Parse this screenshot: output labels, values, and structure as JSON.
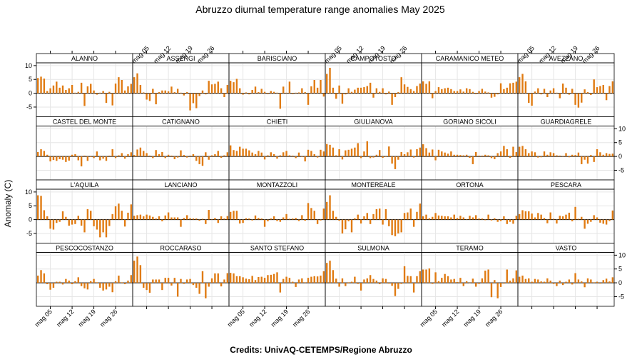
{
  "title": "Abruzzo diurnal temperature range anomalies May 2025",
  "credits": "Credits: UnivAQ-CETEMPS/Regione Abruzzo",
  "ylabel": "Anomaly (C)",
  "colors": {
    "bar": "#e07b12",
    "zero_line": "#000000",
    "grid": "#e6e6e6",
    "strip": "#ffffff",
    "frame": "#000000"
  },
  "chart_data": {
    "type": "bar",
    "layout": "trellis 6 columns x 4 rows",
    "grid": true,
    "ylim": [
      -8.5,
      11
    ],
    "yticks": [
      -5,
      0,
      5,
      10
    ],
    "xlim": [
      0.5,
      31.5
    ],
    "xticks": [
      {
        "day": 5,
        "label": "mag 05"
      },
      {
        "day": 12,
        "label": "mag 12"
      },
      {
        "day": 19,
        "label": "mag 19"
      },
      {
        "day": 26,
        "label": "mag 26"
      }
    ],
    "x": [
      1,
      2,
      3,
      4,
      5,
      6,
      7,
      8,
      9,
      10,
      11,
      12,
      13,
      14,
      15,
      16,
      17,
      18,
      19,
      20,
      21,
      22,
      23,
      24,
      25,
      26,
      27,
      28,
      29,
      30,
      31
    ],
    "stations": [
      {
        "name": "ALANNO",
        "values": [
          5.5,
          6,
          5.3,
          0.8,
          1.8,
          2.8,
          4.2,
          2,
          2.8,
          1.2,
          1.8,
          3,
          0.2,
          0.5,
          3.8,
          -4.6,
          2.5,
          3.4,
          1,
          -0.5,
          0.2,
          0.8,
          -3.5,
          0.5,
          -4.4,
          3.5,
          5.8,
          4.8,
          1,
          2.5,
          3.4
        ]
      },
      {
        "name": "ASSERGI",
        "values": [
          5.8,
          7.2,
          3,
          0.3,
          -2.3,
          -2.8,
          1.6,
          -4,
          0.4,
          1,
          1,
          0.7,
          2.4,
          0.4,
          1.6,
          0.2,
          -0.8,
          0.4,
          -6.2,
          -3.6,
          -5.4,
          -1,
          1,
          -0.4,
          4.5,
          3.2,
          3.4,
          4.2,
          1.8,
          -1.4,
          3
        ]
      },
      {
        "name": "BARISCIANO",
        "values": [
          4.5,
          4,
          5.2,
          1.8,
          -0.5,
          0.3,
          -0.4,
          1.2,
          2.4,
          0.4,
          1.6,
          0.5,
          -0.3,
          0.8,
          0.5,
          0.2,
          -5.6,
          2.4,
          0.2,
          4.2,
          -0.3,
          0.2,
          0.3,
          1.8,
          0.4,
          -4.2,
          2.5,
          4.8,
          2,
          4.8,
          -1.2
        ]
      },
      {
        "name": "CAMPOTOSTO",
        "values": [
          7,
          9.2,
          2,
          -2,
          2.8,
          -3.8,
          -0.4,
          1.8,
          0.5,
          1.3,
          2,
          2,
          2.2,
          2.6,
          3.8,
          -1.6,
          1.8,
          0.5,
          1.8,
          -0.4,
          0.6,
          -4.2,
          -1.4,
          0.4,
          5.8,
          3.2,
          2.3,
          1.5,
          0.8,
          2.6,
          3.5
        ]
      },
      {
        "name": "CARAMANICO METEO",
        "values": [
          4.3,
          3.4,
          4.3,
          -1.8,
          0.8,
          2.2,
          1.5,
          1.8,
          2,
          1.5,
          0.8,
          0.8,
          1.4,
          0.6,
          1.8,
          1.5,
          0.5,
          -0.3,
          0.8,
          1.6,
          0.6,
          0.3,
          -1.6,
          -1.3,
          -0.4,
          3.6,
          1.5,
          2,
          3.6,
          3.8,
          4.2
        ]
      },
      {
        "name": "AVEZZANO",
        "values": [
          5.8,
          7,
          4.3,
          -3.5,
          -4.5,
          0.6,
          1.8,
          -0.4,
          1.6,
          -1.4,
          1,
          1.8,
          0.2,
          -1.8,
          3.5,
          2,
          -0.5,
          1.6,
          -4.2,
          -5.2,
          -3.4,
          1.4,
          0.4,
          -0.6,
          5,
          2.2,
          2.6,
          3,
          -2.5,
          2.6,
          4.3
        ]
      },
      {
        "name": "CASTEL DEL MONTE",
        "values": [
          1.6,
          2.6,
          2,
          0.6,
          -1.8,
          -1.3,
          -1.6,
          -1,
          -1.2,
          -2,
          -1.5,
          0.6,
          0.8,
          -1.4,
          -3.6,
          0.3,
          -1.6,
          -0.2,
          -0.6,
          1.8,
          -1.4,
          -0.8,
          -1.6,
          0.3,
          2.6,
          -0.6,
          0.4,
          1.2,
          -0.8,
          0.8,
          1.5
        ]
      },
      {
        "name": "CATIGNANO",
        "values": [
          0.5,
          2.5,
          3.2,
          2,
          1.2,
          0.3,
          -0.6,
          2.3,
          0.8,
          1.6,
          -0.6,
          0.6,
          0.3,
          -1,
          -0.4,
          2.2,
          0.5,
          -0.4,
          0.3,
          0.8,
          -1.6,
          -2.8,
          -3.4,
          1.5,
          -1.2,
          0.4,
          0.8,
          2,
          -0.5,
          0.4,
          1.5
        ]
      },
      {
        "name": "CHIETI",
        "values": [
          4,
          2.3,
          2,
          3.5,
          2.8,
          2.8,
          2.2,
          1.4,
          0.8,
          2,
          1.4,
          -1.1,
          0.4,
          1.5,
          0.8,
          -0.8,
          0.4,
          1.5,
          2,
          0.4,
          0.3,
          -0.6,
          1.4,
          -0.2,
          -1.8,
          2.4,
          2,
          0.8,
          -0.4,
          2.4,
          1.8
        ]
      },
      {
        "name": "GIULIANOVA",
        "values": [
          4.5,
          4.2,
          3.2,
          0.4,
          2.6,
          -1.1,
          2.2,
          2.4,
          2.8,
          3.2,
          4.8,
          -0.6,
          1.8,
          5.5,
          -0.6,
          -0.4,
          0.6,
          2.3,
          -0.5,
          -0.2,
          3.6,
          -2.6,
          -4.6,
          -1.2,
          1.6,
          0.8,
          1.5,
          2.5,
          -0.4,
          2.6,
          3.2
        ]
      },
      {
        "name": "GORIANO SICOLI",
        "values": [
          4.4,
          3,
          1.4,
          2.5,
          -1.4,
          2.4,
          1.8,
          1.4,
          1,
          1.8,
          0.6,
          0.6,
          0.5,
          0.4,
          0.6,
          -0.5,
          -2.8,
          1.6,
          0.3,
          0.3,
          0.6,
          0.4,
          -0.6,
          -1,
          1.2,
          1.8,
          3.8,
          2.6,
          -0.5,
          3.5,
          1.6
        ]
      },
      {
        "name": "GUARDIAGRELE",
        "values": [
          3.5,
          3.8,
          2.6,
          1.2,
          1.8,
          1.5,
          -0.4,
          -0.3,
          1.8,
          0.6,
          1.5,
          1.2,
          0.4,
          0.3,
          0.2,
          1.2,
          -0.3,
          0.6,
          0.5,
          1.4,
          -2.8,
          -1.2,
          -2.6,
          0.5,
          -2,
          2.6,
          1.5,
          0.6,
          1.2,
          0.9,
          1
        ]
      },
      {
        "name": "L'AQUILA",
        "values": [
          8.8,
          8.6,
          3.4,
          1.2,
          -3.3,
          -3.6,
          -1.2,
          -0.8,
          3,
          1,
          -2.2,
          -1.8,
          -1.6,
          1.4,
          -2.2,
          -4.6,
          3.8,
          3.2,
          -2.4,
          -3.6,
          -6.4,
          -4.6,
          -6.4,
          -2.3,
          2,
          4.8,
          5.8,
          3.2,
          -2.5,
          2.5,
          5.5
        ]
      },
      {
        "name": "LANCIANO",
        "values": [
          1.4,
          1.6,
          1.8,
          1.2,
          1.8,
          1.5,
          1,
          0.4,
          1.2,
          -0.6,
          1.5,
          2.6,
          0.8,
          0.8,
          0.8,
          -2.6,
          0.6,
          1.6,
          0.5,
          0.4,
          0.4,
          -0.4,
          0.3,
          -1.6,
          3.5,
          0.2,
          0.6,
          -1.2,
          1.2,
          0.4,
          1.3
        ]
      },
      {
        "name": "MONTAZZOLI",
        "values": [
          2.8,
          3.2,
          3.2,
          -1.4,
          -1.2,
          0.5,
          0.4,
          -0.3,
          1.5,
          0.6,
          0.4,
          -2.6,
          -0.6,
          0.4,
          1.2,
          -0.5,
          -0.8,
          0.8,
          2,
          0.3,
          0.4,
          0.6,
          -0.5,
          1.6,
          -0.4,
          6,
          4.2,
          3.2,
          -1.6,
          -0.3,
          4
        ]
      },
      {
        "name": "MONTEREALE",
        "values": [
          6.4,
          8.8,
          3.2,
          1,
          -0.4,
          -5,
          -3.5,
          -0.6,
          -4.6,
          0.5,
          1.8,
          -1.4,
          1.2,
          2.4,
          -1.6,
          2,
          3.8,
          4,
          -1.8,
          3.8,
          -2.4,
          -5.6,
          -6,
          -5,
          -4.6,
          2.4,
          2.6,
          4,
          -2.6,
          2.8,
          5.8
        ]
      },
      {
        "name": "ORTONA",
        "values": [
          1.2,
          1.8,
          0.5,
          1,
          2.4,
          1.5,
          1.4,
          1.2,
          1.2,
          0.8,
          1.8,
          0.6,
          1.4,
          0.8,
          0.2,
          1.4,
          0.8,
          1.6,
          0.4,
          0.4,
          -0.2,
          1.8,
          -0.3,
          0.5,
          -0.8,
          -0.5,
          1.2,
          -1.6,
          -0.8,
          -1.5,
          1.4
        ]
      },
      {
        "name": "PESCARA",
        "values": [
          2,
          3.4,
          3,
          3,
          2.2,
          0.8,
          2.4,
          1.8,
          0.6,
          -1.3,
          2.6,
          0.3,
          -1.4,
          1.4,
          1.2,
          1.8,
          2.5,
          -0.6,
          4.6,
          0.3,
          1,
          -3.3,
          -1.5,
          -0.8,
          1.6,
          0.8,
          -1.1,
          -1.5,
          -1.8,
          -0.5,
          3.3
        ]
      },
      {
        "name": "PESCOCOSTANZO",
        "values": [
          2.6,
          4.6,
          3.4,
          -0.5,
          -2.5,
          -1.8,
          0.4,
          0.4,
          -0.6,
          1.4,
          0.8,
          -0.5,
          0.6,
          2,
          -1.2,
          -2,
          -2.4,
          0.6,
          1.4,
          0.2,
          -1.8,
          -2.8,
          -2.4,
          -1.4,
          -3.4,
          0.6,
          2.6,
          0.2,
          -0.5,
          0.8,
          2.8
        ]
      },
      {
        "name": "ROCCARASO",
        "values": [
          8,
          9.5,
          6.4,
          -1.8,
          -2.6,
          -3.6,
          1.2,
          1.2,
          1.2,
          -2.6,
          1.8,
          1.8,
          -1,
          1.8,
          -5,
          1.4,
          -0.4,
          1.2,
          1.4,
          -0.8,
          -1.8,
          -4,
          4.2,
          -5.6,
          -1.4,
          1.6,
          3.4,
          3.4,
          -1.3,
          1.2,
          3.5
        ]
      },
      {
        "name": "SANTO STEFANO",
        "values": [
          3.6,
          3.4,
          2.4,
          2.4,
          2,
          1.5,
          1.3,
          2.5,
          1,
          2.1,
          2.2,
          1.8,
          2.8,
          2.9,
          3.2,
          3.8,
          -3.5,
          1.4,
          2.2,
          1.8,
          0.4,
          -1.5,
          1.2,
          1.6,
          0.2,
          1.8,
          2.2,
          2.4,
          2.3,
          2.6,
          4.2
        ]
      },
      {
        "name": "SULMONA",
        "values": [
          7.2,
          8,
          4.6,
          1.5,
          -1.4,
          1.6,
          -1.2,
          0.2,
          0.4,
          2.2,
          -0.4,
          -2.8,
          1.2,
          1.6,
          2.8,
          1.4,
          0.8,
          -0.5,
          1.6,
          1.4,
          -0.3,
          -1.1,
          -4.8,
          -2.2,
          -0.4,
          6,
          2.5,
          2.4,
          -3.5,
          2.4,
          4.2
        ]
      },
      {
        "name": "TERAMO",
        "values": [
          4.8,
          4.8,
          5.2,
          -0.4,
          3.8,
          0.6,
          1.8,
          3.2,
          2.4,
          1.2,
          1.4,
          0.3,
          1.8,
          -1.2,
          0.6,
          -0.2,
          1.5,
          -1.4,
          -0.4,
          1.6,
          4.4,
          4.8,
          -5.2,
          1,
          -5.6,
          -1.5,
          -0.3,
          4.8,
          0.8,
          1.6,
          4.5
        ]
      },
      {
        "name": "VASTO",
        "values": [
          2.2,
          2.6,
          1.4,
          1.6,
          0.4,
          1.4,
          1.2,
          0.5,
          0.4,
          1.6,
          0.8,
          -0.4,
          -1.2,
          0.8,
          -0.8,
          0.4,
          1.2,
          -0.6,
          3.5,
          1.2,
          0.5,
          -1.6,
          1.6,
          1.2,
          0.2,
          0.4,
          -0.3,
          1,
          1.5,
          0.5,
          2
        ]
      }
    ]
  }
}
